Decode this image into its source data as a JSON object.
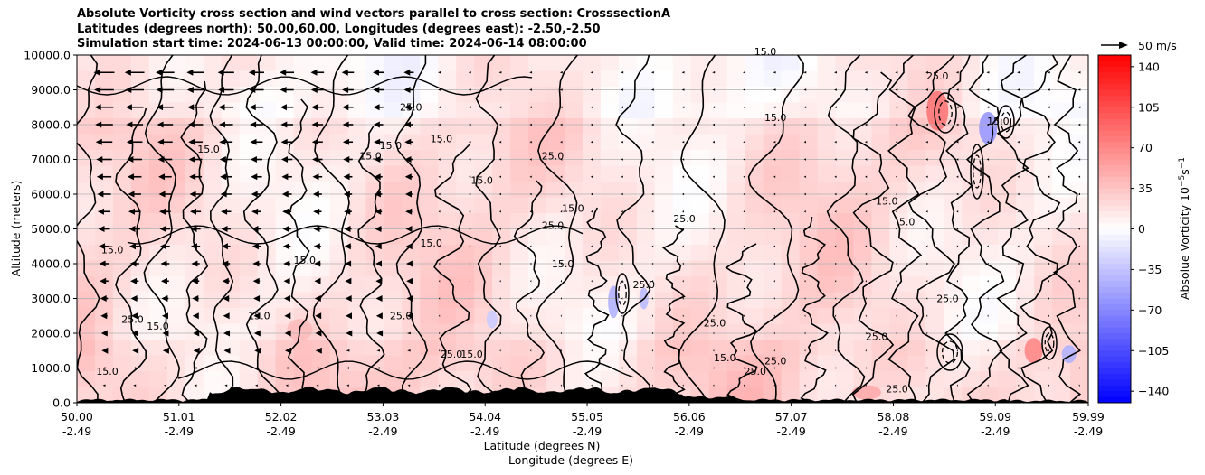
{
  "titles": {
    "line1": "Absolute Vorticity cross section and wind vectors parallel to cross section: CrosssectionA",
    "line2": "Latitudes (degrees north): 50.00,60.00, Longitudes (degrees east): -2.50,-2.50",
    "line3": "Simulation start time: 2024-06-13 00:00:00, Valid time: 2024-06-14 08:00:00"
  },
  "quiver_key": {
    "label": "50 m/s"
  },
  "colorbar": {
    "label": "Absolue Vorticity 10",
    "label_exponent": "−5",
    "label_unit": "s",
    "label_unit_exponent": "−1",
    "ticks": [
      "140",
      "105",
      "70",
      "35",
      "0",
      "−35",
      "−70",
      "−105",
      "−140"
    ],
    "colors": {
      "max": "#ff0000",
      "mid": "#ffffff",
      "min": "#0000ff"
    }
  },
  "chart_data": {
    "type": "heatmap",
    "title": "Absolute Vorticity cross section and wind vectors parallel to cross section: CrosssectionA",
    "ylabel": "Altitude (meters)",
    "xlabel_line1": "Latitude (degrees N)",
    "xlabel_line2": "Longitude (degrees E)",
    "ylim": [
      0,
      10000
    ],
    "clim": [
      -150,
      150
    ],
    "y_ticks": [
      "10000.0",
      "9000.0",
      "8000.0",
      "7000.0",
      "6000.0",
      "5000.0",
      "4000.0",
      "3000.0",
      "2000.0",
      "1000.0",
      "0.0"
    ],
    "y_tick_values": [
      10000,
      9000,
      8000,
      7000,
      6000,
      5000,
      4000,
      3000,
      2000,
      1000,
      0
    ],
    "x_ticks_lat": [
      "50.00",
      "51.01",
      "52.02",
      "53.03",
      "54.04",
      "55.05",
      "56.06",
      "57.07",
      "58.08",
      "59.09",
      "59.99"
    ],
    "x_ticks_lon": [
      "-2.49",
      "-2.49",
      "-2.49",
      "-2.49",
      "-2.49",
      "-2.49",
      "-2.49",
      "-2.49",
      "-2.49",
      "-2.49",
      "-2.49"
    ],
    "x_tick_fractions": [
      0,
      0.1009,
      0.2018,
      0.3027,
      0.4036,
      0.5045,
      0.6054,
      0.7063,
      0.8072,
      0.9081,
      1.0
    ],
    "grid": "horizontal",
    "contour_levels": [
      5.0,
      15.0,
      25.0,
      35.0
    ],
    "contour_labels": [
      {
        "text": "15.0",
        "x": 50.35,
        "y": 4300
      },
      {
        "text": "25.0",
        "x": 50.55,
        "y": 2300
      },
      {
        "text": "15.0",
        "x": 50.8,
        "y": 2100
      },
      {
        "text": "15.0",
        "x": 51.8,
        "y": 2400
      },
      {
        "text": "15.0",
        "x": 51.3,
        "y": 7200
      },
      {
        "text": "15.0",
        "x": 52.25,
        "y": 4000
      },
      {
        "text": "15.0",
        "x": 52.9,
        "y": 7000
      },
      {
        "text": "15.0",
        "x": 53.1,
        "y": 7300
      },
      {
        "text": "25.0",
        "x": 53.3,
        "y": 8400
      },
      {
        "text": "15.0",
        "x": 53.6,
        "y": 7500
      },
      {
        "text": "15.0",
        "x": 54.0,
        "y": 6300
      },
      {
        "text": "25.0",
        "x": 54.7,
        "y": 7000
      },
      {
        "text": "15.0",
        "x": 54.9,
        "y": 5500
      },
      {
        "text": "25.0",
        "x": 54.7,
        "y": 5000
      },
      {
        "text": "15.0",
        "x": 53.5,
        "y": 4500
      },
      {
        "text": "25.0",
        "x": 56.0,
        "y": 5200
      },
      {
        "text": "15.0",
        "x": 56.9,
        "y": 8100
      },
      {
        "text": "15.0",
        "x": 56.8,
        "y": 10000
      },
      {
        "text": "25.0",
        "x": 58.5,
        "y": 9300
      },
      {
        "text": "15.0",
        "x": 59.1,
        "y": 8000
      },
      {
        "text": "5.0",
        "x": 58.2,
        "y": 5100
      },
      {
        "text": "15.0",
        "x": 58.0,
        "y": 5700
      },
      {
        "text": "25.0",
        "x": 58.6,
        "y": 2900
      },
      {
        "text": "25.0",
        "x": 57.9,
        "y": 1800
      },
      {
        "text": "15.0",
        "x": 56.4,
        "y": 1200
      },
      {
        "text": "25.0",
        "x": 56.9,
        "y": 1100
      },
      {
        "text": "25.0",
        "x": 56.7,
        "y": 800
      },
      {
        "text": "25.0",
        "x": 53.7,
        "y": 1300
      },
      {
        "text": "15.0",
        "x": 53.9,
        "y": 1300
      },
      {
        "text": "15.0",
        "x": 50.3,
        "y": 800
      },
      {
        "text": "25.0",
        "x": 53.2,
        "y": 2400
      },
      {
        "text": "25.0",
        "x": 55.6,
        "y": 3300
      },
      {
        "text": "25.0",
        "x": 56.3,
        "y": 2200
      },
      {
        "text": "25.0",
        "x": 58.1,
        "y": 300
      },
      {
        "text": "15.0",
        "x": 54.8,
        "y": 3900
      }
    ]
  }
}
